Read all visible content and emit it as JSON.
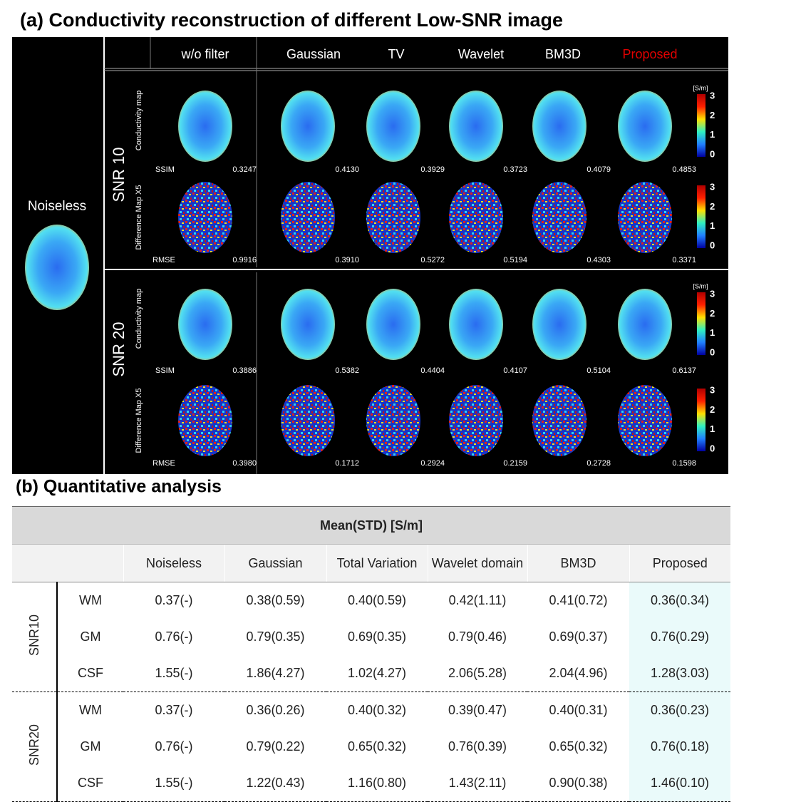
{
  "panel_a": {
    "title": "(a) Conductivity reconstruction of different Low-SNR image",
    "noiseless_label": "Noiseless",
    "columns": [
      "w/o filter",
      "Gaussian",
      "TV",
      "Wavelet",
      "BM3D",
      "Proposed"
    ],
    "map_labels": [
      "Conductivity map",
      "Difference Map X5"
    ],
    "metric_labels": [
      "SSIM",
      "RMSE"
    ],
    "colorbar_unit": "[S/m]",
    "colorbar_ticks": [
      "3",
      "2",
      "1",
      "0"
    ],
    "rows": [
      {
        "snr": "SNR 10",
        "ssim": [
          "0.3247",
          "0.4130",
          "0.3929",
          "0.3723",
          "0.4079",
          "0.4853"
        ],
        "rmse": [
          "0.9916",
          "0.3910",
          "0.5272",
          "0.5194",
          "0.4303",
          "0.3371"
        ]
      },
      {
        "snr": "SNR 20",
        "ssim": [
          "0.3886",
          "0.5382",
          "0.4404",
          "0.4107",
          "0.5104",
          "0.6137"
        ],
        "rmse": [
          "0.3980",
          "0.1712",
          "0.2924",
          "0.2159",
          "0.2728",
          "0.1598"
        ]
      }
    ]
  },
  "panel_b": {
    "title": "(b) Quantitative analysis",
    "header": "Mean(STD) [S/m]",
    "columns": [
      "Noiseless",
      "Gaussian",
      "Total Variation",
      "Wavelet domain",
      "BM3D",
      "Proposed"
    ],
    "groups": [
      {
        "name": "SNR10",
        "rows": [
          {
            "label": "WM",
            "cells": [
              "0.37(-)",
              "0.38(0.59)",
              "0.40(0.59)",
              "0.42(1.11)",
              "0.41(0.72)",
              "0.36(0.34)"
            ]
          },
          {
            "label": "GM",
            "cells": [
              "0.76(-)",
              "0.79(0.35)",
              "0.69(0.35)",
              "0.79(0.46)",
              "0.69(0.37)",
              "0.76(0.29)"
            ]
          },
          {
            "label": "CSF",
            "cells": [
              "1.55(-)",
              "1.86(4.27)",
              "1.02(4.27)",
              "2.06(5.28)",
              "2.04(4.96)",
              "1.28(3.03)"
            ]
          }
        ]
      },
      {
        "name": "SNR20",
        "rows": [
          {
            "label": "WM",
            "cells": [
              "0.37(-)",
              "0.36(0.26)",
              "0.40(0.32)",
              "0.39(0.47)",
              "0.40(0.31)",
              "0.36(0.23)"
            ]
          },
          {
            "label": "GM",
            "cells": [
              "0.76(-)",
              "0.79(0.22)",
              "0.65(0.32)",
              "0.76(0.39)",
              "0.65(0.32)",
              "0.76(0.18)"
            ]
          },
          {
            "label": "CSF",
            "cells": [
              "1.55(-)",
              "1.22(0.43)",
              "1.16(0.80)",
              "1.43(2.11)",
              "0.90(0.38)",
              "1.46(0.10)"
            ]
          }
        ]
      }
    ]
  }
}
